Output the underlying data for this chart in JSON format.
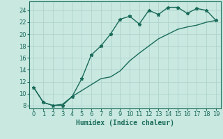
{
  "xlabel": "Humidex (Indice chaleur)",
  "ylabel": "",
  "background_color": "#c8e8e0",
  "grid_color": "#b0d4cc",
  "line_color": "#1a6b5a",
  "xlim": [
    -0.5,
    19.5
  ],
  "ylim": [
    7.5,
    25.5
  ],
  "xticks": [
    0,
    1,
    2,
    3,
    4,
    5,
    6,
    7,
    8,
    9,
    10,
    11,
    12,
    13,
    14,
    15,
    16,
    17,
    18,
    19
  ],
  "yticks": [
    8,
    10,
    12,
    14,
    16,
    18,
    20,
    22,
    24
  ],
  "line1_x": [
    0,
    1,
    2,
    3,
    4,
    5,
    6,
    7,
    8,
    9,
    10,
    11,
    12,
    13,
    14,
    15,
    16,
    17,
    18,
    19
  ],
  "line1_y": [
    11,
    8.5,
    8,
    8,
    9.5,
    12.5,
    16.5,
    18,
    20,
    22.5,
    23,
    21.7,
    24,
    23.3,
    24.5,
    24.5,
    23.5,
    24.3,
    24,
    22.3
  ],
  "line2_x": [
    0,
    1,
    2,
    3,
    4,
    5,
    6,
    7,
    8,
    9,
    10,
    11,
    12,
    13,
    14,
    15,
    16,
    17,
    18,
    19
  ],
  "line2_y": [
    11,
    8.5,
    8,
    8.2,
    9.5,
    10.5,
    11.5,
    12.5,
    12.8,
    13.8,
    15.5,
    16.8,
    18.0,
    19.2,
    20.0,
    20.8,
    21.2,
    21.5,
    22.0,
    22.3
  ],
  "xlabel_fontsize": 7,
  "tick_fontsize": 6
}
